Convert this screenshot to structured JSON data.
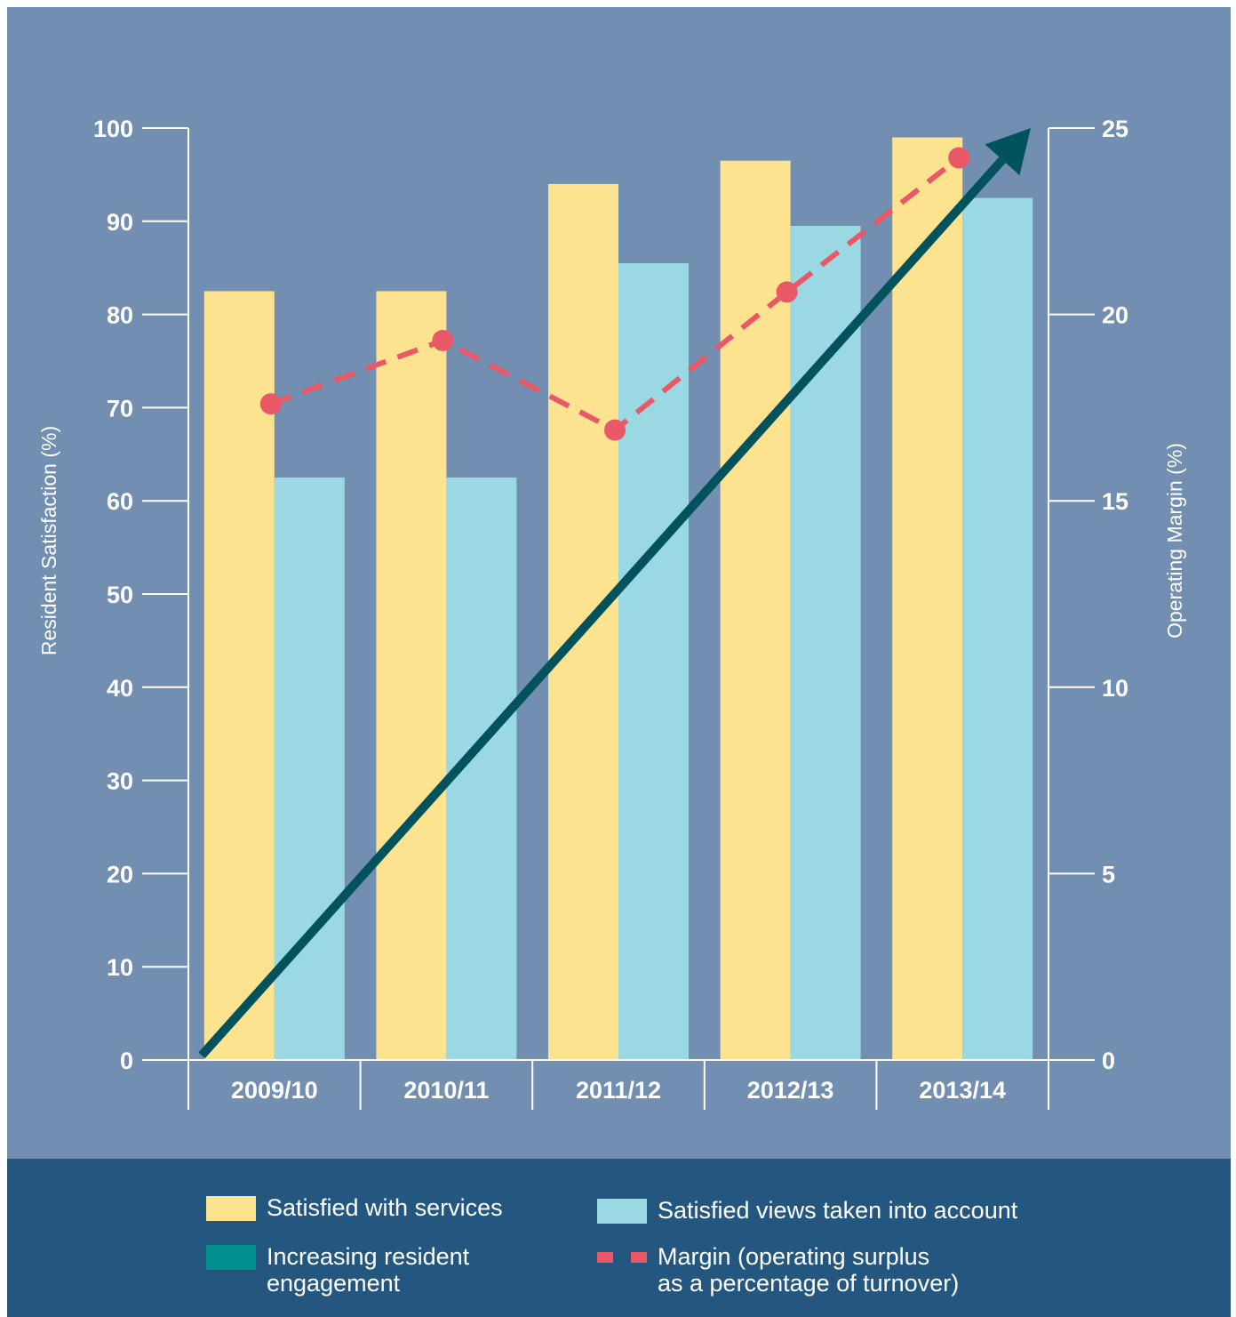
{
  "chart_data": {
    "type": "bar",
    "categories": [
      "2009/10",
      "2010/11",
      "2011/12",
      "2012/13",
      "2013/14"
    ],
    "series": [
      {
        "name": "Satisfied with services",
        "type": "bar",
        "axis": "left",
        "color": "#fde28f",
        "values": [
          82.5,
          82.5,
          94,
          96.5,
          99
        ]
      },
      {
        "name": "Satisfied views taken into account",
        "type": "bar",
        "axis": "left",
        "color": "#9ad8e4",
        "values": [
          62.5,
          62.5,
          85.5,
          89.5,
          92.5
        ]
      },
      {
        "name": "Margin (operating surplus\nas a percentage of turnover)",
        "type": "line",
        "style": "dashed",
        "axis": "right",
        "color": "#e85867",
        "values": [
          17.6,
          19.3,
          16.9,
          20.6,
          24.2
        ]
      },
      {
        "name": "Increasing resident\nengagement",
        "type": "arrow",
        "axis": "left",
        "color": "#00535c",
        "from": 0.5,
        "to": 100
      }
    ],
    "ylabel": "Resident Satisfaction (%)",
    "ylabel_right": "Operating Margin (%)",
    "ylim": [
      0,
      100
    ],
    "ylim_right": [
      0,
      25
    ],
    "yticks": [
      0,
      10,
      20,
      30,
      40,
      50,
      60,
      70,
      80,
      90,
      100
    ],
    "yticks_right": [
      0,
      5,
      10,
      15,
      20,
      25
    ],
    "legend_placement": "bottom",
    "grid": false
  },
  "legend": [
    {
      "label": "Satisfied with services",
      "color": "#fde28f",
      "icon": "swatch"
    },
    {
      "label": "Satisfied views taken into account",
      "color": "#9ad8e4",
      "icon": "swatch"
    },
    {
      "label": "Increasing resident\nengagement",
      "color": "#008f8b",
      "icon": "swatch"
    },
    {
      "label": "Margin (operating surplus\nas a percentage of turnover)",
      "color": "#e85867",
      "icon": "dash"
    }
  ],
  "colors": {
    "panel": "#728fb2",
    "legend_panel": "#23577f",
    "axis": "#ffffff"
  }
}
